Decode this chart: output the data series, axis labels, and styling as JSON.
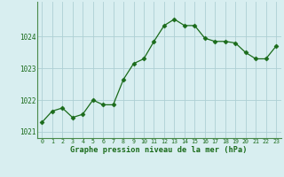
{
  "x": [
    0,
    1,
    2,
    3,
    4,
    5,
    6,
    7,
    8,
    9,
    10,
    11,
    12,
    13,
    14,
    15,
    16,
    17,
    18,
    19,
    20,
    21,
    22,
    23
  ],
  "y": [
    1021.3,
    1021.65,
    1021.75,
    1021.45,
    1021.55,
    1022.0,
    1021.85,
    1021.85,
    1022.65,
    1023.15,
    1023.3,
    1023.85,
    1024.35,
    1024.55,
    1024.35,
    1024.35,
    1023.95,
    1023.85,
    1023.85,
    1023.8,
    1023.5,
    1023.3,
    1023.3,
    1023.7
  ],
  "line_color": "#1a6b1a",
  "marker": "D",
  "marker_size": 2.5,
  "bg_color": "#d8eef0",
  "grid_color": "#aecfd4",
  "xlabel": "Graphe pression niveau de la mer (hPa)",
  "xlabel_color": "#1a6b1a",
  "tick_color": "#1a6b1a",
  "spine_color": "#4a8a4a",
  "ylim": [
    1020.8,
    1025.1
  ],
  "xlim": [
    -0.5,
    23.5
  ],
  "yticks": [
    1021,
    1022,
    1023,
    1024
  ],
  "xticks": [
    0,
    1,
    2,
    3,
    4,
    5,
    6,
    7,
    8,
    9,
    10,
    11,
    12,
    13,
    14,
    15,
    16,
    17,
    18,
    19,
    20,
    21,
    22,
    23
  ]
}
